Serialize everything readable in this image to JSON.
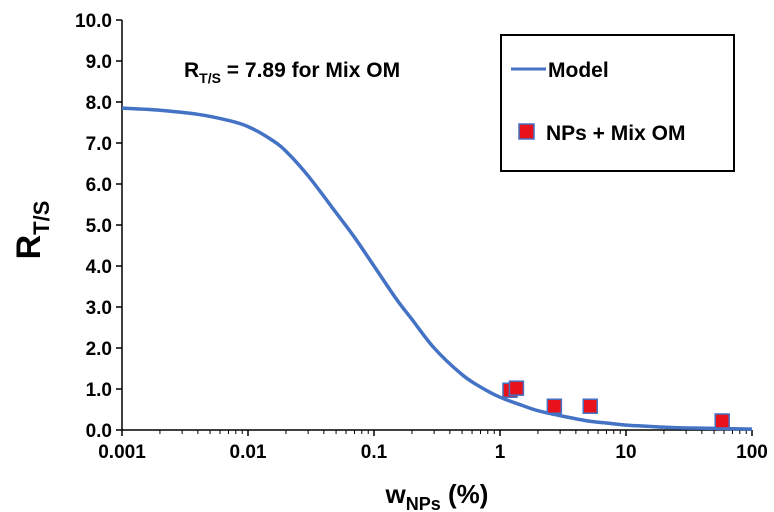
{
  "chart_data": {
    "type": "scatter",
    "x_scale": "log",
    "xlim": [
      0.001,
      100
    ],
    "ylim": [
      0,
      10
    ],
    "x_ticks": [
      "0.001",
      "0.01",
      "0.1",
      "1",
      "10",
      "100"
    ],
    "y_ticks": [
      "0.0",
      "1.0",
      "2.0",
      "3.0",
      "4.0",
      "5.0",
      "6.0",
      "7.0",
      "8.0",
      "9.0",
      "10.0"
    ],
    "xlabel": {
      "main": "w",
      "sub": "NPs",
      "suffix": " (%)"
    },
    "ylabel": {
      "main": "R",
      "sub": "T/S"
    },
    "annotation": {
      "main": "R",
      "sub": "T/S",
      "suffix": " = 7.89 for Mix OM"
    },
    "legend_position": "top-right",
    "grid": false,
    "series": [
      {
        "name": "Model",
        "kind": "line",
        "color": "#4472C4",
        "x": [
          0.001,
          0.002,
          0.004,
          0.007,
          0.01,
          0.015,
          0.02,
          0.03,
          0.05,
          0.07,
          0.1,
          0.15,
          0.2,
          0.3,
          0.5,
          0.7,
          1,
          1.5,
          2,
          3,
          5,
          7,
          10,
          15,
          20,
          30,
          50,
          70,
          100
        ],
        "y": [
          7.85,
          7.8,
          7.7,
          7.55,
          7.4,
          7.1,
          6.8,
          6.2,
          5.3,
          4.7,
          4.0,
          3.2,
          2.7,
          2.0,
          1.35,
          1.05,
          0.8,
          0.6,
          0.47,
          0.35,
          0.22,
          0.17,
          0.12,
          0.09,
          0.07,
          0.05,
          0.04,
          0.03,
          0.02
        ]
      },
      {
        "name": "NPs + Mix OM",
        "kind": "marker",
        "color": "#E8131A",
        "edge_color": "#4472C4",
        "x": [
          1.2,
          1.35,
          2.7,
          5.2,
          58
        ],
        "y": [
          0.97,
          1.02,
          0.58,
          0.58,
          0.22
        ]
      }
    ]
  }
}
